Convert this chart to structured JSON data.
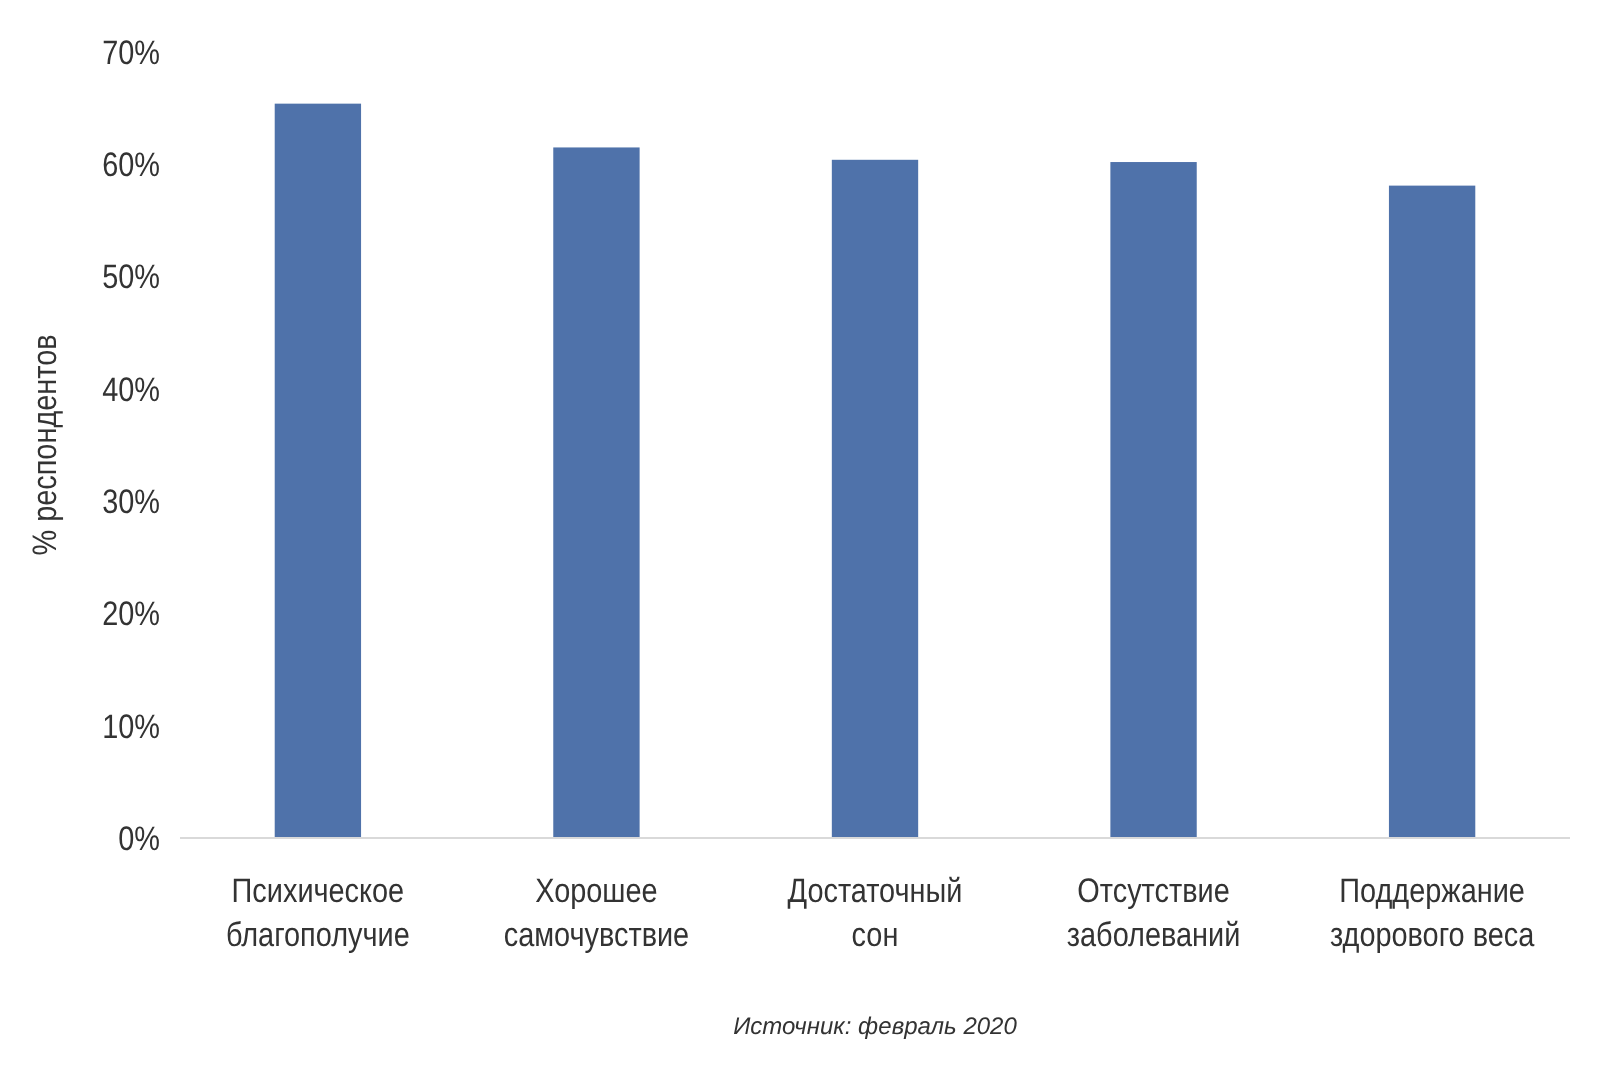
{
  "chart_data": {
    "type": "bar",
    "ylabel": "% респондентов",
    "categories": [
      "Психическое\nблагополучие",
      "Хорошее\nсамочувствие",
      "Достаточный\nсон",
      "Отсутствие\nзаболеваний",
      "Поддержание\nздорового веса"
    ],
    "values": [
      65.4,
      61.5,
      60.4,
      60.2,
      58.1
    ],
    "color": "#4f72aa",
    "ylim": [
      0,
      70
    ],
    "yticks": [
      {
        "value": 0,
        "label": "0%"
      },
      {
        "value": 10,
        "label": "10%"
      },
      {
        "value": 20,
        "label": "20%"
      },
      {
        "value": 30,
        "label": "30%"
      },
      {
        "value": 40,
        "label": "40%"
      },
      {
        "value": 50,
        "label": "50%"
      },
      {
        "value": 60,
        "label": "60%"
      },
      {
        "value": 70,
        "label": "70%"
      }
    ],
    "grid": false,
    "annotations": [
      "Источник: февраль 2020"
    ]
  }
}
